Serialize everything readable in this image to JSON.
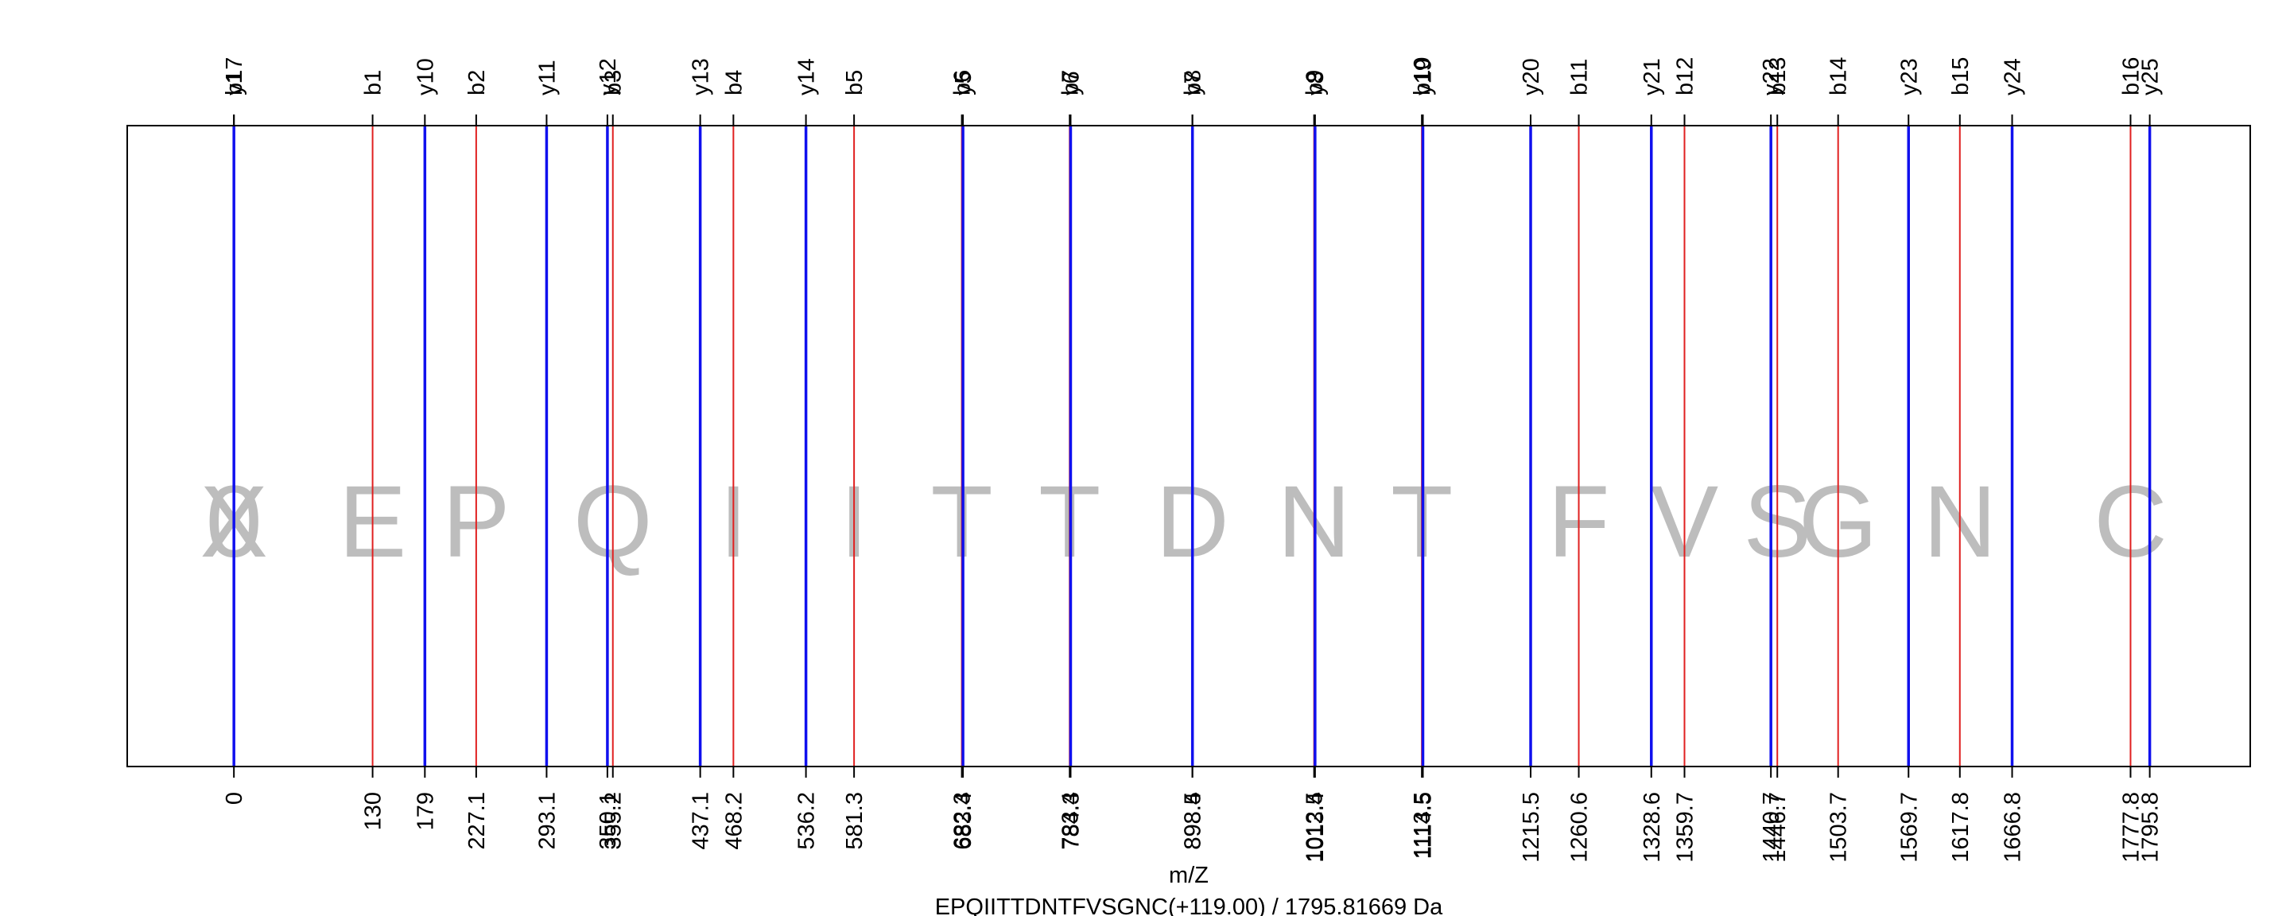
{
  "chart_data": {
    "type": "fragment-ion-ladder",
    "xlabel": "m/Z",
    "subtitle": "EPQIITTDNTFVSGNC(+119.00) / 1795.81669 Da",
    "xlim": [
      -100,
      1890
    ],
    "colors": {
      "b": "#e02020",
      "y": "#1010ee",
      "axis": "#000000",
      "residue": "#bdbdbd"
    },
    "peaks": [
      {
        "label": "b17",
        "x": 0,
        "type": "b"
      },
      {
        "label": "y1",
        "x": 0,
        "type": "y"
      },
      {
        "label": "b1",
        "x": 130,
        "type": "b"
      },
      {
        "label": "y10",
        "x": 179,
        "type": "y"
      },
      {
        "label": "b2",
        "x": 227.1,
        "type": "b"
      },
      {
        "label": "y11",
        "x": 293.1,
        "type": "y"
      },
      {
        "label": "y12",
        "x": 350.1,
        "type": "y"
      },
      {
        "label": "b3",
        "x": 355.2,
        "type": "b"
      },
      {
        "label": "y13",
        "x": 437.1,
        "type": "y"
      },
      {
        "label": "b4",
        "x": 468.2,
        "type": "b"
      },
      {
        "label": "y14",
        "x": 536.2,
        "type": "y"
      },
      {
        "label": "b5",
        "x": 581.3,
        "type": "b"
      },
      {
        "label": "b6",
        "x": 682.3,
        "type": "b"
      },
      {
        "label": "y5",
        "x": 683.4,
        "type": "y"
      },
      {
        "label": "b7",
        "x": 783.4,
        "type": "b"
      },
      {
        "label": "y6",
        "x": 784.3,
        "type": "y"
      },
      {
        "label": "b8",
        "x": 898.4,
        "type": "b"
      },
      {
        "label": "y7",
        "x": 898.5,
        "type": "y"
      },
      {
        "label": "b9",
        "x": 1012.5,
        "type": "b"
      },
      {
        "label": "y8",
        "x": 1013.4,
        "type": "y"
      },
      {
        "label": "b10",
        "x": 1113.5,
        "type": "b"
      },
      {
        "label": "y19",
        "x": 1114.5,
        "type": "y"
      },
      {
        "label": "y20",
        "x": 1215.5,
        "type": "y"
      },
      {
        "label": "b11",
        "x": 1260.6,
        "type": "b"
      },
      {
        "label": "y21",
        "x": 1328.6,
        "type": "y"
      },
      {
        "label": "b12",
        "x": 1359.7,
        "type": "b"
      },
      {
        "label": "y22",
        "x": 1440.7,
        "type": "y"
      },
      {
        "label": "b13",
        "x": 1446.7,
        "type": "b"
      },
      {
        "label": "b14",
        "x": 1503.7,
        "type": "b"
      },
      {
        "label": "y23",
        "x": 1569.7,
        "type": "y"
      },
      {
        "label": "b15",
        "x": 1617.8,
        "type": "b"
      },
      {
        "label": "y24",
        "x": 1666.8,
        "type": "y"
      },
      {
        "label": "b16",
        "x": 1777.8,
        "type": "b"
      },
      {
        "label": "y25",
        "x": 1795.8,
        "type": "y"
      }
    ],
    "tick_labels": [
      {
        "x": 0,
        "text": "0"
      },
      {
        "x": 130,
        "text": "130"
      },
      {
        "x": 179,
        "text": "179"
      },
      {
        "x": 227.1,
        "text": "227.1"
      },
      {
        "x": 293.1,
        "text": "293.1"
      },
      {
        "x": 350.1,
        "text": "350.1"
      },
      {
        "x": 355.2,
        "text": "355.2"
      },
      {
        "x": 437.1,
        "text": "437.1"
      },
      {
        "x": 468.2,
        "text": "468.2"
      },
      {
        "x": 536.2,
        "text": "536.2"
      },
      {
        "x": 581.3,
        "text": "581.3"
      },
      {
        "x": 682.3,
        "text": "682.3"
      },
      {
        "x": 683.4,
        "text": "683.4"
      },
      {
        "x": 783.4,
        "text": "783.4"
      },
      {
        "x": 784.3,
        "text": "784.3"
      },
      {
        "x": 898.4,
        "text": "898.4"
      },
      {
        "x": 898.5,
        "text": "898.5"
      },
      {
        "x": 1012.5,
        "text": "1012.5"
      },
      {
        "x": 1013.4,
        "text": "1013.4"
      },
      {
        "x": 1113.5,
        "text": "1113.5"
      },
      {
        "x": 1114.5,
        "text": "1114.5"
      },
      {
        "x": 1215.5,
        "text": "1215.5"
      },
      {
        "x": 1260.6,
        "text": "1260.6"
      },
      {
        "x": 1328.6,
        "text": "1328.6"
      },
      {
        "x": 1359.7,
        "text": "1359.7"
      },
      {
        "x": 1440.7,
        "text": "1440.7"
      },
      {
        "x": 1446.7,
        "text": "1446.7"
      },
      {
        "x": 1503.7,
        "text": "1503.7"
      },
      {
        "x": 1569.7,
        "text": "1569.7"
      },
      {
        "x": 1617.8,
        "text": "1617.8"
      },
      {
        "x": 1666.8,
        "text": "1666.8"
      },
      {
        "x": 1777.8,
        "text": "1777.8"
      },
      {
        "x": 1795.8,
        "text": "1795.8"
      }
    ],
    "residues": [
      {
        "letter": "0",
        "x": 0
      },
      {
        "letter": "X",
        "x": 0
      },
      {
        "letter": "E",
        "x": 130
      },
      {
        "letter": "P",
        "x": 227.1
      },
      {
        "letter": "Q",
        "x": 355.2
      },
      {
        "letter": "I",
        "x": 468.2
      },
      {
        "letter": "I",
        "x": 581.3
      },
      {
        "letter": "T",
        "x": 682.3
      },
      {
        "letter": "T",
        "x": 783.4
      },
      {
        "letter": "D",
        "x": 898.4
      },
      {
        "letter": "N",
        "x": 1012.5
      },
      {
        "letter": "T",
        "x": 1113.5
      },
      {
        "letter": "F",
        "x": 1260.6
      },
      {
        "letter": "V",
        "x": 1359.7
      },
      {
        "letter": "S",
        "x": 1446.7
      },
      {
        "letter": "G",
        "x": 1503.7
      },
      {
        "letter": "N",
        "x": 1617.8
      },
      {
        "letter": "C",
        "x": 1777.8
      }
    ]
  }
}
